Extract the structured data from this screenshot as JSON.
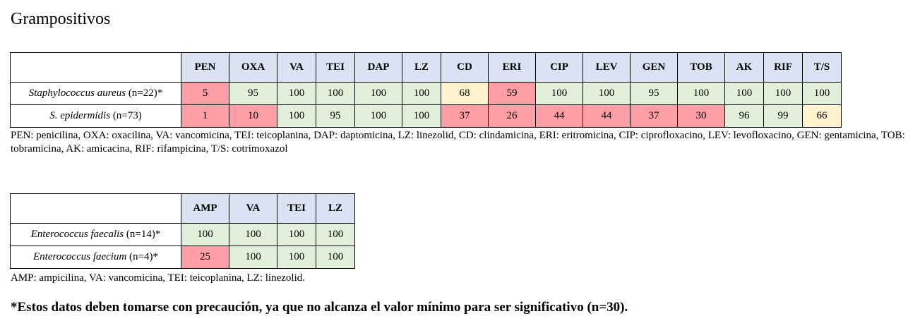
{
  "title": "Grampositivos",
  "table1": {
    "columns": [
      "PEN",
      "OXA",
      "VA",
      "TEI",
      "DAP",
      "LZ",
      "CD",
      "ERI",
      "CIP",
      "LEV",
      "GEN",
      "TOB",
      "AK",
      "RIF",
      "T/S"
    ],
    "rows": [
      {
        "species": "Staphylococcus aureus",
        "count": " (n=22)*",
        "values": [
          "5",
          "95",
          "100",
          "100",
          "100",
          "100",
          "68",
          "59",
          "100",
          "100",
          "95",
          "100",
          "100",
          "100",
          "100"
        ],
        "colors": [
          "r",
          "g",
          "g",
          "g",
          "g",
          "g",
          "y",
          "r",
          "g",
          "g",
          "g",
          "g",
          "g",
          "g",
          "g"
        ]
      },
      {
        "species": "S. epidermidis",
        "count": " (n=73)",
        "values": [
          "1",
          "10",
          "100",
          "95",
          "100",
          "100",
          "37",
          "26",
          "44",
          "44",
          "37",
          "30",
          "96",
          "99",
          "66"
        ],
        "colors": [
          "r",
          "r",
          "g",
          "g",
          "g",
          "g",
          "r",
          "r",
          "r",
          "r",
          "r",
          "r",
          "g",
          "g",
          "y"
        ]
      }
    ],
    "legend": "PEN: penicilina, OXA: oxacilina, VA: vancomicina, TEI: teicoplanina, DAP: daptomicina, LZ: linezolid, CD: clindamicina, ERI: eritromicina, CIP: ciprofloxacino, LEV: levofloxacino, GEN: gentamicina, TOB: tobramicina, AK: amicacina, RIF: rifampicina, T/S: cotrimoxazol"
  },
  "table2": {
    "columns": [
      "AMP",
      "VA",
      "TEI",
      "LZ"
    ],
    "rows": [
      {
        "species": "Enterococcus faecalis",
        "count": " (n=14)*",
        "values": [
          "100",
          "100",
          "100",
          "100"
        ],
        "colors": [
          "g",
          "g",
          "g",
          "g"
        ]
      },
      {
        "species": "Enterococcus faecium",
        "count": " (n=4)*",
        "values": [
          "25",
          "100",
          "100",
          "100"
        ],
        "colors": [
          "r",
          "g",
          "g",
          "g"
        ]
      }
    ],
    "legend": "AMP: ampicilina, VA: vancomicina, TEI: teicoplanina, LZ: linezolid."
  },
  "colors": {
    "g": "#e2efd9",
    "r": "#ff9fa5",
    "y": "#fff2cc",
    "header": "#dae3f3"
  },
  "note": "*Estos datos deben tomarse con precaución, ya que no alcanza el valor mínimo para ser significativo (n=30)."
}
